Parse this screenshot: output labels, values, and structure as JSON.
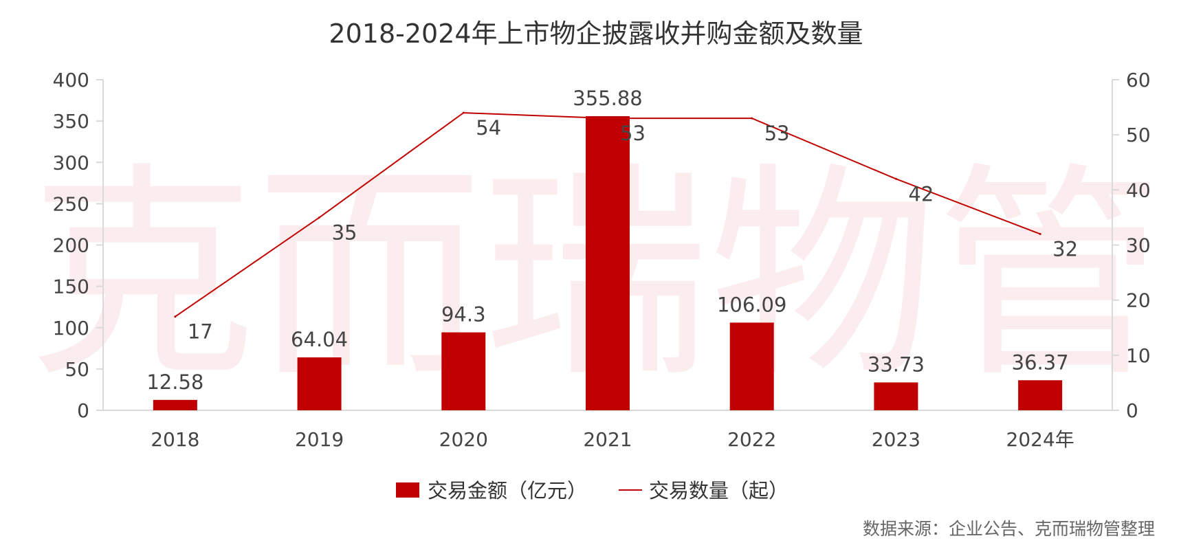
{
  "chart_data": {
    "type": "bar+line",
    "title": "2018-2024年上市物企披露收并购金额及数量",
    "categories": [
      "2018",
      "2019",
      "2020",
      "2021",
      "2022",
      "2023",
      "2024年"
    ],
    "series": [
      {
        "name": "交易金额（亿元）",
        "type": "bar",
        "axis": "left",
        "color": "#c00000",
        "values": [
          12.58,
          64.04,
          94.3,
          355.88,
          106.09,
          33.73,
          36.37
        ],
        "labels": [
          "12.58",
          "64.04",
          "94.3",
          "355.88",
          "106.09",
          "33.73",
          "36.37"
        ]
      },
      {
        "name": "交易数量（起）",
        "type": "line",
        "axis": "right",
        "color": "#c00000",
        "values": [
          17,
          35,
          54,
          53,
          53,
          42,
          32
        ],
        "labels": [
          "17",
          "35",
          "54",
          "53",
          "53",
          "42",
          "32"
        ]
      }
    ],
    "y_left": {
      "min": 0,
      "max": 400,
      "step": 50,
      "ticks": [
        "0",
        "50",
        "100",
        "150",
        "200",
        "250",
        "300",
        "350",
        "400"
      ]
    },
    "y_right": {
      "min": 0,
      "max": 60,
      "step": 10,
      "ticks": [
        "0",
        "10",
        "20",
        "30",
        "40",
        "50",
        "60"
      ]
    },
    "grid": false,
    "legend_position": "bottom-center"
  },
  "watermark": "克而瑞物管",
  "source_note": "数据来源：企业公告、克而瑞物管整理"
}
